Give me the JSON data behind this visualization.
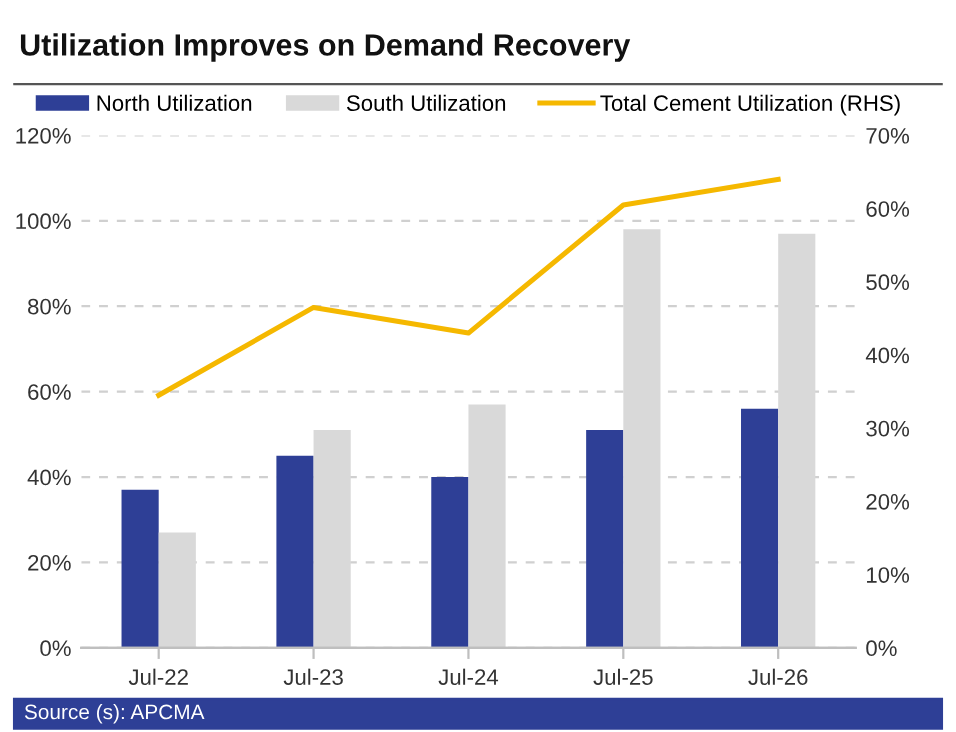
{
  "chart_data": {
    "type": "bar",
    "title": "Utilization Improves on Demand Recovery",
    "categories": [
      "Jul-22",
      "Jul-23",
      "Jul-24",
      "Jul-25",
      "Jul-26"
    ],
    "series": [
      {
        "name": "North Utilization",
        "color": "#2e3f96",
        "values": [
          37,
          45,
          40,
          51,
          56
        ]
      },
      {
        "name": "South Utilization",
        "color": "#d9d9d9",
        "values": [
          27,
          51,
          57,
          98,
          97
        ]
      },
      {
        "name": "Total Cement Utilization (RHS)",
        "type": "line",
        "axis": "y2",
        "color": "#f5b800",
        "values": [
          34.5,
          46.5,
          43,
          60.5,
          64
        ]
      }
    ],
    "ylim": [
      0,
      120
    ],
    "yticks": [
      {
        "value": 0,
        "label": "0%"
      },
      {
        "value": 20,
        "label": "20%"
      },
      {
        "value": 40,
        "label": "40%"
      },
      {
        "value": 60,
        "label": "60%"
      },
      {
        "value": 80,
        "label": "80%"
      },
      {
        "value": 100,
        "label": "100%"
      },
      {
        "value": 120,
        "label": "120%"
      }
    ],
    "y2lim": [
      0,
      70
    ],
    "y2ticks": [
      {
        "value": 0,
        "label": "0%"
      },
      {
        "value": 10,
        "label": "10%"
      },
      {
        "value": 20,
        "label": "20%"
      },
      {
        "value": 30,
        "label": "30%"
      },
      {
        "value": 40,
        "label": "40%"
      },
      {
        "value": 50,
        "label": "50%"
      },
      {
        "value": 60,
        "label": "60%"
      },
      {
        "value": 70,
        "label": "70%"
      }
    ],
    "grid": "y",
    "legend": "top",
    "annotations": [
      "Source (s): APCMA"
    ]
  }
}
